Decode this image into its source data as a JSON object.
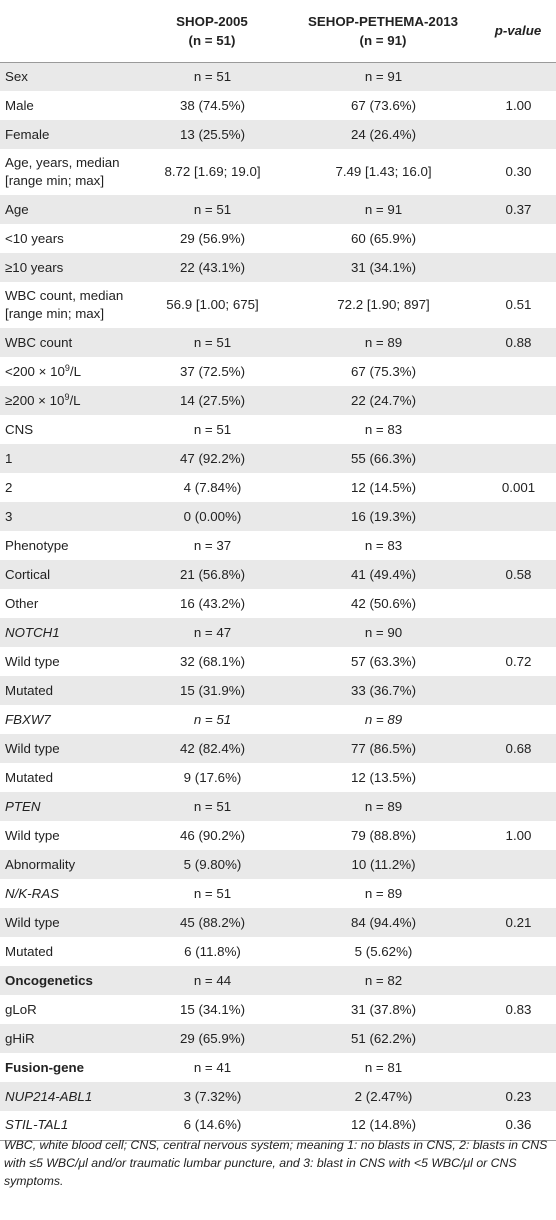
{
  "header": {
    "col1_line1": "SHOP-2005",
    "col1_line2": "(n = 51)",
    "col2_line1": "SEHOP-PETHEMA-2013",
    "col2_line2": "(n = 91)",
    "col3": "p-value"
  },
  "rows": [
    {
      "label": "Sex",
      "c1": "n = 51",
      "c2": "n = 91",
      "p": ""
    },
    {
      "label": "Male",
      "c1": "38 (74.5%)",
      "c2": "67 (73.6%)",
      "p": "1.00"
    },
    {
      "label": "Female",
      "c1": "13 (25.5%)",
      "c2": "24 (26.4%)",
      "p": ""
    },
    {
      "label": "Age, years, median",
      "label2": "[range min; max]",
      "c1": "8.72 [1.69; 19.0]",
      "c2": "7.49 [1.43; 16.0]",
      "p": "0.30"
    },
    {
      "label": "Age",
      "c1": "n = 51",
      "c2": "n = 91",
      "p": "0.37"
    },
    {
      "label": "<10 years",
      "c1": "29 (56.9%)",
      "c2": "60 (65.9%)",
      "p": ""
    },
    {
      "label": "≥10 years",
      "c1": "22 (43.1%)",
      "c2": "31 (34.1%)",
      "p": ""
    },
    {
      "label": "WBC count, median",
      "label2": "[range min; max]",
      "c1": "56.9 [1.00; 675]",
      "c2": "72.2 [1.90; 897]",
      "p": "0.51"
    },
    {
      "label": "WBC count",
      "c1": "n = 51",
      "c2": "n = 89",
      "p": "0.88"
    },
    {
      "label": "<200 × 10",
      "sup": "9",
      "label_suffix": "/L",
      "c1": "37 (72.5%)",
      "c2": "67 (75.3%)",
      "p": ""
    },
    {
      "label": "≥200 × 10",
      "sup": "9",
      "label_suffix": "/L",
      "c1": "14 (27.5%)",
      "c2": "22 (24.7%)",
      "p": ""
    },
    {
      "label": "CNS",
      "c1": "n = 51",
      "c2": "n = 83",
      "p": ""
    },
    {
      "label": "1",
      "c1": "47 (92.2%)",
      "c2": "55 (66.3%)",
      "p": ""
    },
    {
      "label": "2",
      "c1": "4 (7.84%)",
      "c2": "12 (14.5%)",
      "p": "0.001"
    },
    {
      "label": "3",
      "c1": "0 (0.00%)",
      "c2": "16 (19.3%)",
      "p": ""
    },
    {
      "label": "Phenotype",
      "c1": "n = 37",
      "c2": "n = 83",
      "p": ""
    },
    {
      "label": "Cortical",
      "c1": "21 (56.8%)",
      "c2": "41 (49.4%)",
      "p": "0.58"
    },
    {
      "label": "Other",
      "c1": "16 (43.2%)",
      "c2": "42 (50.6%)",
      "p": ""
    },
    {
      "label": "NOTCH1",
      "c1": "n = 47",
      "c2": "n = 90",
      "p": ""
    },
    {
      "label": "Wild type",
      "c1": "32 (68.1%)",
      "c2": "57 (63.3%)",
      "p": "0.72"
    },
    {
      "label": "Mutated",
      "c1": "15 (31.9%)",
      "c2": "33 (36.7%)",
      "p": ""
    },
    {
      "label": "FBXW7",
      "c1": "n = 51",
      "c2": "n = 89",
      "p": ""
    },
    {
      "label": "Wild type",
      "c1": "42 (82.4%)",
      "c2": "77 (86.5%)",
      "p": "0.68"
    },
    {
      "label": "Mutated",
      "c1": "9 (17.6%)",
      "c2": "12 (13.5%)",
      "p": ""
    },
    {
      "label": "PTEN",
      "c1": "n = 51",
      "c2": "n = 89",
      "p": ""
    },
    {
      "label": "Wild type",
      "c1": "46 (90.2%)",
      "c2": "79 (88.8%)",
      "p": "1.00"
    },
    {
      "label": "Abnormality",
      "c1": "5 (9.80%)",
      "c2": "10 (11.2%)",
      "p": ""
    },
    {
      "label": "N/K-RAS",
      "c1": "n = 51",
      "c2": "n = 89",
      "p": ""
    },
    {
      "label": "Wild type",
      "c1": "45 (88.2%)",
      "c2": "84 (94.4%)",
      "p": "0.21"
    },
    {
      "label": "Mutated",
      "c1": "6 (11.8%)",
      "c2": "5 (5.62%)",
      "p": ""
    },
    {
      "label": "Oncogenetics",
      "c1": "n = 44",
      "c2": "n = 82",
      "p": ""
    },
    {
      "label": "gLoR",
      "c1": "15 (34.1%)",
      "c2": "31 (37.8%)",
      "p": "0.83"
    },
    {
      "label": "gHiR",
      "c1": "29 (65.9%)",
      "c2": "51 (62.2%)",
      "p": ""
    },
    {
      "label": "Fusion-gene",
      "c1": "n = 41",
      "c2": "n = 81",
      "p": ""
    },
    {
      "label": "NUP214-ABL1",
      "c1": "3 (7.32%)",
      "c2": "2 (2.47%)",
      "p": "0.23"
    },
    {
      "label": "STIL-TAL1",
      "c1": "6 (14.6%)",
      "c2": "12 (14.8%)",
      "p": "0.36"
    }
  ],
  "footnote": "WBC, white blood cell; CNS, central nervous system; meaning 1: no blasts in CNS, 2: blasts in CNS with ≤5 WBC/μl and/or traumatic lumbar puncture, and 3: blast in CNS with <5 WBC/μl or CNS symptoms."
}
